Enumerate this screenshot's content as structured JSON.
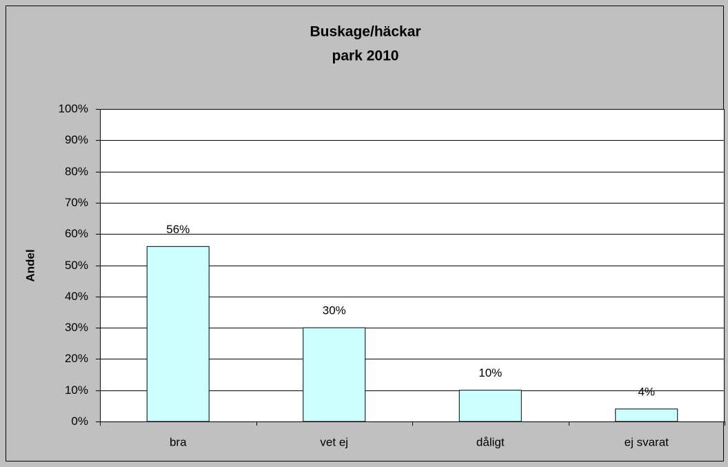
{
  "chart_data": {
    "type": "bar",
    "title": "Buskage/häckar",
    "subtitle": "park 2010",
    "y_label": "Andel",
    "categories": [
      "bra",
      "vet ej",
      "dåligt",
      "ej svarat"
    ],
    "values": [
      56,
      30,
      10,
      4
    ],
    "value_labels": [
      "56%",
      "30%",
      "10%",
      "4%"
    ],
    "color": "#ccffff",
    "ylim": [
      0,
      100
    ],
    "yticks": [
      {
        "value": 0,
        "label": "0%"
      },
      {
        "value": 10,
        "label": "10%"
      },
      {
        "value": 20,
        "label": "20%"
      },
      {
        "value": 30,
        "label": "30%"
      },
      {
        "value": 40,
        "label": "40%"
      },
      {
        "value": 50,
        "label": "50%"
      },
      {
        "value": 60,
        "label": "60%"
      },
      {
        "value": 70,
        "label": "70%"
      },
      {
        "value": 80,
        "label": "80%"
      },
      {
        "value": 90,
        "label": "90%"
      },
      {
        "value": 100,
        "label": "100%"
      }
    ],
    "grid": true
  }
}
